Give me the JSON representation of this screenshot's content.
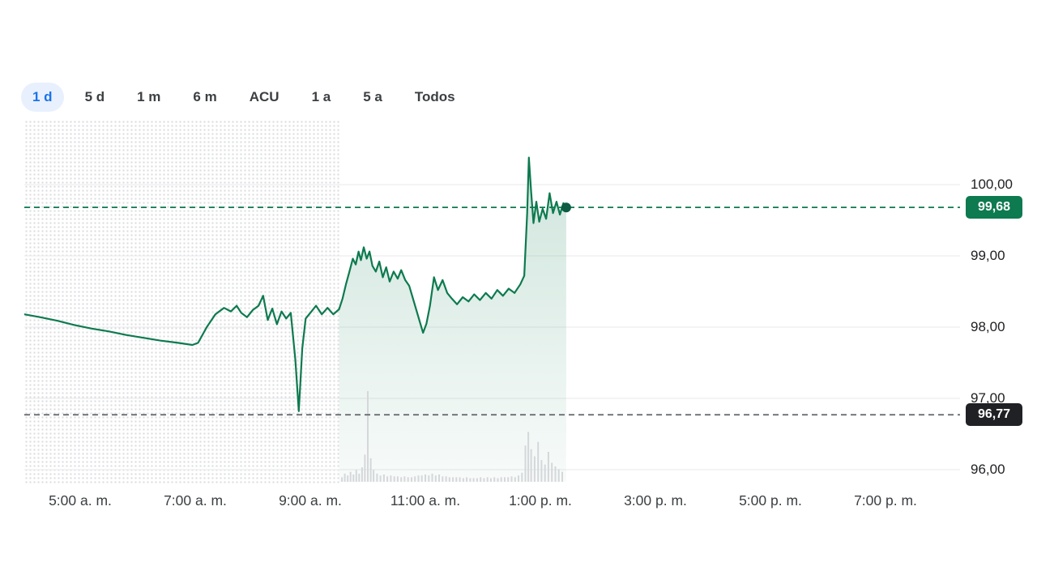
{
  "tabs": {
    "items": [
      {
        "label": "1 d",
        "selected": true
      },
      {
        "label": "5 d",
        "selected": false
      },
      {
        "label": "1 m",
        "selected": false
      },
      {
        "label": "6 m",
        "selected": false
      },
      {
        "label": "ACU",
        "selected": false
      },
      {
        "label": "1 a",
        "selected": false
      },
      {
        "label": "5 a",
        "selected": false
      },
      {
        "label": "Todos",
        "selected": false
      }
    ]
  },
  "colors": {
    "accent_blue": "#1a73e8",
    "tab_selected_bg": "#e8f0fe",
    "line_green": "#0d7a4f",
    "area_top": "rgba(13,122,79,0.20)",
    "area_bottom": "rgba(13,122,79,0.03)",
    "badge_green_bg": "#0d7a4f",
    "badge_dark_bg": "#202124",
    "dashed_gray": "#606469",
    "grid": "#e9eaec",
    "volume_bar": "#d5d7da",
    "dot": "#0d5c43",
    "axis_text": "#202124"
  },
  "chart_data": {
    "type": "line",
    "title": "",
    "xlabel": "",
    "ylabel": "",
    "current_price": 99.68,
    "current_price_label": "99,68",
    "previous_close": 96.77,
    "previous_close_label": "96,77",
    "market_open_hour": 9.5,
    "xlim_hours": [
      4.0,
      20.3
    ],
    "ylim": [
      95.8,
      100.9
    ],
    "y_ticks": [
      "100,00",
      "99,00",
      "98,00",
      "97,00",
      "96,00"
    ],
    "y_tick_values": [
      100,
      99,
      98,
      97,
      96
    ],
    "x_ticks": [
      {
        "t": 5,
        "label": "5:00 a. m."
      },
      {
        "t": 7,
        "label": "7:00 a. m."
      },
      {
        "t": 9,
        "label": "9:00 a. m."
      },
      {
        "t": 11,
        "label": "11:00 a. m."
      },
      {
        "t": 13,
        "label": "1:00 p. m."
      },
      {
        "t": 15,
        "label": "3:00 p. m."
      },
      {
        "t": 17,
        "label": "5:00 p. m."
      },
      {
        "t": 19,
        "label": "7:00 p. m."
      }
    ],
    "series": [
      {
        "name": "price",
        "points": [
          [
            4.03,
            98.18
          ],
          [
            4.3,
            98.14
          ],
          [
            4.6,
            98.09
          ],
          [
            4.9,
            98.03
          ],
          [
            5.2,
            97.98
          ],
          [
            5.5,
            97.94
          ],
          [
            5.8,
            97.89
          ],
          [
            6.1,
            97.85
          ],
          [
            6.4,
            97.81
          ],
          [
            6.7,
            97.78
          ],
          [
            6.95,
            97.75
          ],
          [
            7.05,
            97.78
          ],
          [
            7.2,
            98.0
          ],
          [
            7.35,
            98.18
          ],
          [
            7.5,
            98.27
          ],
          [
            7.62,
            98.22
          ],
          [
            7.72,
            98.3
          ],
          [
            7.8,
            98.2
          ],
          [
            7.9,
            98.14
          ],
          [
            8.0,
            98.24
          ],
          [
            8.1,
            98.3
          ],
          [
            8.18,
            98.44
          ],
          [
            8.26,
            98.1
          ],
          [
            8.34,
            98.26
          ],
          [
            8.42,
            98.04
          ],
          [
            8.5,
            98.22
          ],
          [
            8.58,
            98.12
          ],
          [
            8.66,
            98.2
          ],
          [
            8.74,
            97.55
          ],
          [
            8.8,
            96.82
          ],
          [
            8.86,
            97.7
          ],
          [
            8.92,
            98.12
          ],
          [
            9.0,
            98.2
          ],
          [
            9.1,
            98.3
          ],
          [
            9.2,
            98.18
          ],
          [
            9.3,
            98.27
          ],
          [
            9.4,
            98.18
          ],
          [
            9.5,
            98.25
          ],
          [
            9.56,
            98.4
          ],
          [
            9.62,
            98.6
          ],
          [
            9.68,
            98.78
          ],
          [
            9.74,
            98.96
          ],
          [
            9.79,
            98.88
          ],
          [
            9.84,
            99.06
          ],
          [
            9.88,
            98.94
          ],
          [
            9.93,
            99.12
          ],
          [
            9.98,
            98.96
          ],
          [
            10.03,
            99.06
          ],
          [
            10.08,
            98.86
          ],
          [
            10.14,
            98.78
          ],
          [
            10.2,
            98.92
          ],
          [
            10.26,
            98.7
          ],
          [
            10.32,
            98.84
          ],
          [
            10.38,
            98.64
          ],
          [
            10.45,
            98.78
          ],
          [
            10.52,
            98.68
          ],
          [
            10.58,
            98.8
          ],
          [
            10.65,
            98.66
          ],
          [
            10.72,
            98.58
          ],
          [
            10.8,
            98.36
          ],
          [
            10.88,
            98.14
          ],
          [
            10.96,
            97.92
          ],
          [
            11.02,
            98.05
          ],
          [
            11.08,
            98.3
          ],
          [
            11.15,
            98.7
          ],
          [
            11.22,
            98.52
          ],
          [
            11.3,
            98.66
          ],
          [
            11.38,
            98.48
          ],
          [
            11.46,
            98.4
          ],
          [
            11.55,
            98.32
          ],
          [
            11.65,
            98.42
          ],
          [
            11.75,
            98.36
          ],
          [
            11.85,
            98.46
          ],
          [
            11.95,
            98.38
          ],
          [
            12.05,
            98.48
          ],
          [
            12.15,
            98.4
          ],
          [
            12.25,
            98.52
          ],
          [
            12.35,
            98.44
          ],
          [
            12.45,
            98.54
          ],
          [
            12.55,
            98.48
          ],
          [
            12.65,
            98.6
          ],
          [
            12.72,
            98.72
          ],
          [
            12.77,
            99.6
          ],
          [
            12.8,
            100.38
          ],
          [
            12.84,
            99.9
          ],
          [
            12.88,
            99.46
          ],
          [
            12.93,
            99.76
          ],
          [
            12.98,
            99.48
          ],
          [
            13.04,
            99.66
          ],
          [
            13.1,
            99.52
          ],
          [
            13.16,
            99.88
          ],
          [
            13.22,
            99.6
          ],
          [
            13.28,
            99.76
          ],
          [
            13.34,
            99.58
          ],
          [
            13.4,
            99.74
          ],
          [
            13.45,
            99.68
          ]
        ]
      }
    ],
    "volume": [
      [
        9.55,
        0.05
      ],
      [
        9.6,
        0.09
      ],
      [
        9.65,
        0.07
      ],
      [
        9.7,
        0.11
      ],
      [
        9.75,
        0.08
      ],
      [
        9.8,
        0.13
      ],
      [
        9.85,
        0.09
      ],
      [
        9.9,
        0.16
      ],
      [
        9.95,
        0.3
      ],
      [
        10.0,
        1.0
      ],
      [
        10.05,
        0.26
      ],
      [
        10.1,
        0.13
      ],
      [
        10.16,
        0.09
      ],
      [
        10.22,
        0.07
      ],
      [
        10.28,
        0.08
      ],
      [
        10.34,
        0.06
      ],
      [
        10.4,
        0.07
      ],
      [
        10.46,
        0.06
      ],
      [
        10.52,
        0.06
      ],
      [
        10.58,
        0.05
      ],
      [
        10.64,
        0.06
      ],
      [
        10.7,
        0.05
      ],
      [
        10.76,
        0.05
      ],
      [
        10.82,
        0.06
      ],
      [
        10.88,
        0.07
      ],
      [
        10.94,
        0.07
      ],
      [
        11.0,
        0.08
      ],
      [
        11.06,
        0.07
      ],
      [
        11.12,
        0.09
      ],
      [
        11.18,
        0.07
      ],
      [
        11.24,
        0.08
      ],
      [
        11.3,
        0.06
      ],
      [
        11.36,
        0.06
      ],
      [
        11.42,
        0.05
      ],
      [
        11.48,
        0.05
      ],
      [
        11.54,
        0.05
      ],
      [
        11.6,
        0.05
      ],
      [
        11.66,
        0.04
      ],
      [
        11.72,
        0.05
      ],
      [
        11.78,
        0.04
      ],
      [
        11.84,
        0.04
      ],
      [
        11.9,
        0.04
      ],
      [
        11.96,
        0.05
      ],
      [
        12.02,
        0.04
      ],
      [
        12.08,
        0.05
      ],
      [
        12.14,
        0.04
      ],
      [
        12.2,
        0.05
      ],
      [
        12.26,
        0.04
      ],
      [
        12.32,
        0.05
      ],
      [
        12.38,
        0.05
      ],
      [
        12.44,
        0.05
      ],
      [
        12.5,
        0.06
      ],
      [
        12.56,
        0.05
      ],
      [
        12.62,
        0.07
      ],
      [
        12.68,
        0.1
      ],
      [
        12.74,
        0.4
      ],
      [
        12.79,
        0.55
      ],
      [
        12.84,
        0.36
      ],
      [
        12.9,
        0.28
      ],
      [
        12.96,
        0.44
      ],
      [
        13.02,
        0.24
      ],
      [
        13.08,
        0.19
      ],
      [
        13.14,
        0.33
      ],
      [
        13.2,
        0.21
      ],
      [
        13.26,
        0.17
      ],
      [
        13.32,
        0.14
      ],
      [
        13.38,
        0.11
      ]
    ]
  }
}
